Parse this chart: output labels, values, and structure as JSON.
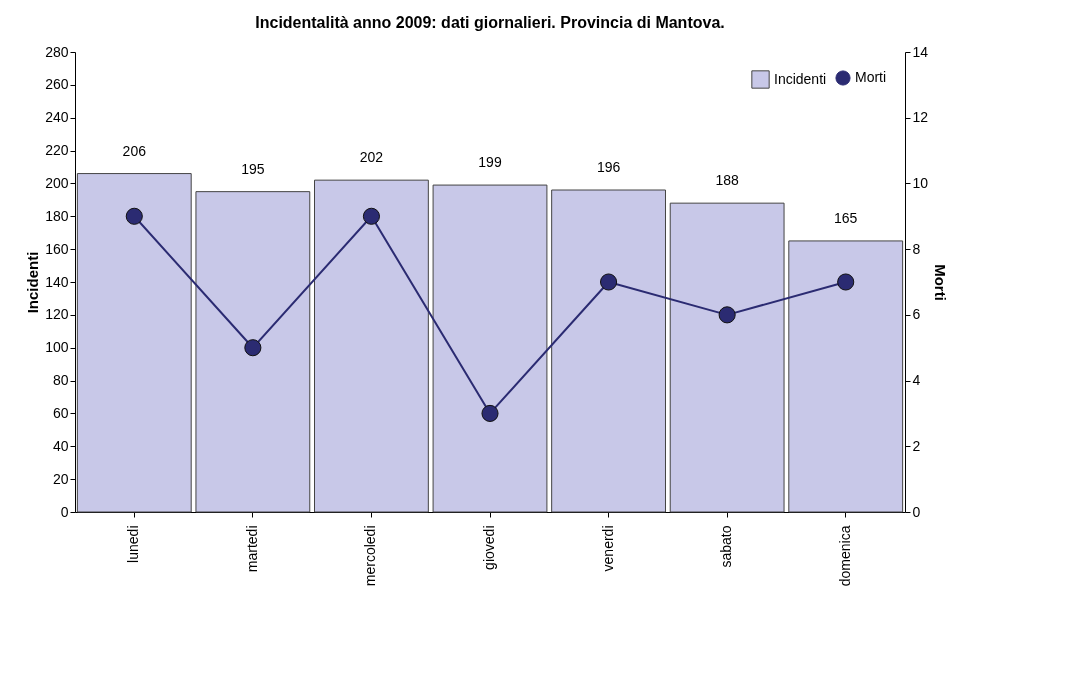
{
  "chart_data": {
    "type": "bar",
    "title": "Incidentalità anno 2009: dati giornalieri. Provincia di Mantova.",
    "ylabel": "Incidenti",
    "y2label": "Morti",
    "categories": [
      "lunedi",
      "martedi",
      "mercoledi",
      "giovedi",
      "venerdi",
      "sabato",
      "domenica"
    ],
    "series": [
      {
        "name": "Incidenti",
        "color": "#c8c8e8",
        "values": [
          206,
          195,
          202,
          199,
          196,
          188,
          165
        ],
        "value_labels": [
          "206",
          "195",
          "202",
          "199",
          "196",
          "188",
          "165"
        ]
      },
      {
        "name": "Morti",
        "type": "line",
        "axis": "y2",
        "color": "#2b2b72",
        "values": [
          9,
          5,
          9,
          3,
          7,
          6,
          7
        ]
      }
    ],
    "ylim": [
      0,
      280
    ],
    "yticks": [
      0,
      20,
      40,
      60,
      80,
      100,
      120,
      140,
      160,
      180,
      200,
      220,
      240,
      260,
      280
    ],
    "y2lim": [
      0,
      14
    ],
    "y2ticks": [
      0,
      2,
      4,
      6,
      8,
      10,
      12,
      14
    ],
    "marker": "circle",
    "grid": false,
    "legend": "top right"
  }
}
